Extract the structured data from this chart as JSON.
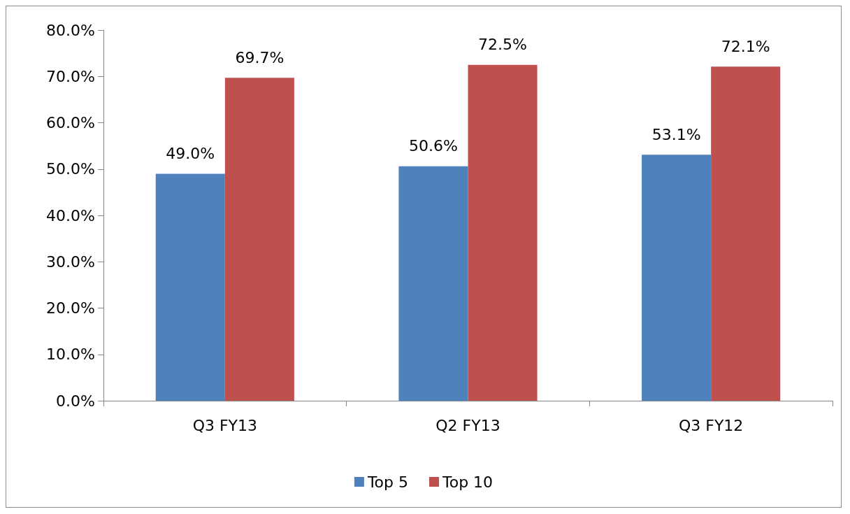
{
  "chart_data": {
    "type": "bar",
    "categories": [
      "Q3 FY13",
      "Q2 FY13",
      "Q3 FY12"
    ],
    "series": [
      {
        "name": "Top 5",
        "color": "#4f81bd",
        "values": [
          49.0,
          50.6,
          53.1
        ],
        "value_labels": [
          "49.0%",
          "50.6%",
          "53.1%"
        ]
      },
      {
        "name": "Top 10",
        "color": "#c0504d",
        "values": [
          69.7,
          72.5,
          72.1
        ],
        "value_labels": [
          "69.7%",
          "72.5%",
          "72.1%"
        ]
      }
    ],
    "ylim": [
      0,
      80
    ],
    "yticks": [
      {
        "value": 0,
        "label": "0.0%"
      },
      {
        "value": 10,
        "label": "10.0%"
      },
      {
        "value": 20,
        "label": "20.0%"
      },
      {
        "value": 30,
        "label": "30.0%"
      },
      {
        "value": 40,
        "label": "40.0%"
      },
      {
        "value": 50,
        "label": "50.0%"
      },
      {
        "value": 60,
        "label": "60.0%"
      },
      {
        "value": 70,
        "label": "70.0%"
      },
      {
        "value": 80,
        "label": "80.0%"
      }
    ],
    "grid": false,
    "legend": "bottom"
  }
}
